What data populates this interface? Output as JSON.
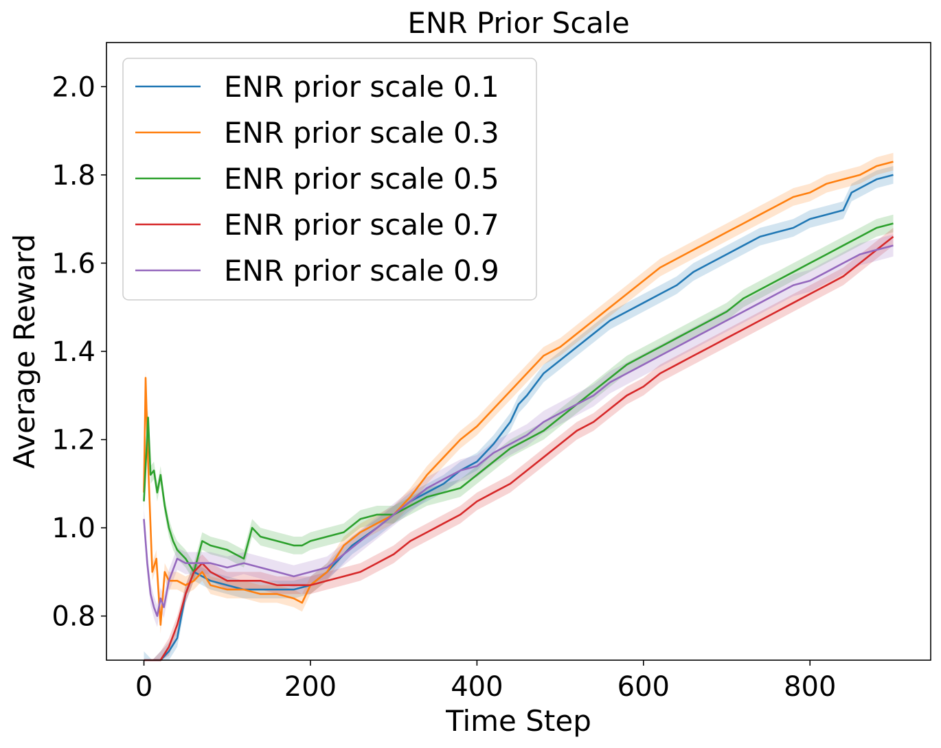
{
  "chart_data": {
    "type": "line",
    "title": "ENR Prior Scale",
    "xlabel": "Time Step",
    "ylabel": "Average Reward",
    "xlim": [
      -45,
      945
    ],
    "ylim": [
      0.7,
      2.1
    ],
    "xticks": [
      0,
      200,
      400,
      600,
      800
    ],
    "xtick_labels": [
      "0",
      "200",
      "400",
      "600",
      "800"
    ],
    "yticks": [
      0.8,
      1.0,
      1.2,
      1.4,
      1.6,
      1.8,
      2.0
    ],
    "ytick_labels": [
      "0.8",
      "1.0",
      "1.2",
      "1.4",
      "1.6",
      "1.8",
      "2.0"
    ],
    "grid": false,
    "legend_position": "top-left",
    "bands": true,
    "series": [
      {
        "name": "ENR prior scale 0.1",
        "color": "#1f77b4",
        "x": [
          0,
          10,
          20,
          30,
          40,
          50,
          60,
          80,
          100,
          120,
          150,
          180,
          200,
          220,
          250,
          280,
          300,
          320,
          340,
          360,
          380,
          400,
          420,
          440,
          450,
          460,
          480,
          500,
          520,
          540,
          560,
          580,
          600,
          620,
          640,
          660,
          680,
          700,
          720,
          740,
          760,
          780,
          800,
          820,
          840,
          850,
          860,
          880,
          900
        ],
        "y": [
          0.7,
          0.68,
          0.7,
          0.72,
          0.75,
          0.85,
          0.9,
          0.88,
          0.87,
          0.86,
          0.86,
          0.86,
          0.87,
          0.9,
          0.96,
          1.0,
          1.03,
          1.06,
          1.08,
          1.1,
          1.13,
          1.15,
          1.19,
          1.24,
          1.28,
          1.3,
          1.35,
          1.38,
          1.41,
          1.44,
          1.47,
          1.49,
          1.51,
          1.53,
          1.55,
          1.58,
          1.6,
          1.62,
          1.64,
          1.66,
          1.67,
          1.68,
          1.7,
          1.71,
          1.72,
          1.76,
          1.77,
          1.79,
          1.8
        ],
        "band": 0.02
      },
      {
        "name": "ENR prior scale 0.3",
        "color": "#ff7f0e",
        "x": [
          0,
          2,
          5,
          10,
          15,
          20,
          25,
          30,
          40,
          50,
          60,
          70,
          80,
          100,
          120,
          140,
          160,
          180,
          190,
          200,
          220,
          240,
          260,
          280,
          300,
          320,
          340,
          360,
          380,
          400,
          420,
          440,
          460,
          480,
          500,
          520,
          540,
          560,
          580,
          600,
          620,
          640,
          660,
          680,
          700,
          720,
          740,
          760,
          780,
          800,
          820,
          840,
          860,
          880,
          900
        ],
        "y": [
          1.08,
          1.34,
          1.15,
          0.9,
          0.93,
          0.78,
          0.9,
          0.88,
          0.88,
          0.87,
          0.88,
          0.9,
          0.87,
          0.86,
          0.86,
          0.85,
          0.85,
          0.84,
          0.83,
          0.87,
          0.9,
          0.96,
          0.99,
          1.01,
          1.03,
          1.07,
          1.12,
          1.16,
          1.2,
          1.23,
          1.27,
          1.31,
          1.35,
          1.39,
          1.41,
          1.44,
          1.47,
          1.5,
          1.53,
          1.56,
          1.59,
          1.61,
          1.63,
          1.65,
          1.67,
          1.69,
          1.71,
          1.73,
          1.75,
          1.76,
          1.78,
          1.79,
          1.8,
          1.82,
          1.83
        ],
        "band": 0.02
      },
      {
        "name": "ENR prior scale 0.5",
        "color": "#2ca02c",
        "x": [
          0,
          5,
          8,
          12,
          16,
          20,
          25,
          30,
          35,
          40,
          50,
          60,
          70,
          80,
          100,
          120,
          130,
          140,
          160,
          180,
          190,
          200,
          220,
          240,
          260,
          280,
          300,
          320,
          340,
          360,
          380,
          400,
          420,
          440,
          460,
          480,
          500,
          520,
          540,
          560,
          580,
          600,
          620,
          640,
          660,
          680,
          700,
          720,
          740,
          760,
          780,
          800,
          820,
          840,
          860,
          880,
          900
        ],
        "y": [
          1.06,
          1.25,
          1.12,
          1.13,
          1.08,
          1.12,
          1.05,
          1.0,
          0.97,
          0.95,
          0.93,
          0.9,
          0.97,
          0.96,
          0.95,
          0.93,
          1.0,
          0.98,
          0.97,
          0.96,
          0.96,
          0.97,
          0.98,
          0.99,
          1.02,
          1.03,
          1.03,
          1.05,
          1.07,
          1.08,
          1.09,
          1.12,
          1.15,
          1.18,
          1.2,
          1.22,
          1.25,
          1.28,
          1.31,
          1.34,
          1.37,
          1.39,
          1.41,
          1.43,
          1.45,
          1.47,
          1.49,
          1.52,
          1.54,
          1.56,
          1.58,
          1.6,
          1.62,
          1.64,
          1.66,
          1.68,
          1.69
        ],
        "band": 0.02
      },
      {
        "name": "ENR prior scale 0.7",
        "color": "#d62728",
        "x": [
          0,
          10,
          20,
          30,
          40,
          50,
          60,
          70,
          80,
          100,
          120,
          140,
          160,
          180,
          200,
          220,
          240,
          260,
          280,
          300,
          320,
          340,
          360,
          380,
          400,
          420,
          440,
          460,
          480,
          500,
          520,
          540,
          560,
          580,
          600,
          620,
          640,
          660,
          680,
          700,
          720,
          740,
          760,
          780,
          800,
          820,
          840,
          860,
          880,
          900
        ],
        "y": [
          0.68,
          0.68,
          0.7,
          0.73,
          0.78,
          0.85,
          0.9,
          0.92,
          0.9,
          0.88,
          0.88,
          0.88,
          0.87,
          0.87,
          0.87,
          0.88,
          0.89,
          0.9,
          0.92,
          0.94,
          0.97,
          0.99,
          1.01,
          1.03,
          1.06,
          1.08,
          1.1,
          1.13,
          1.16,
          1.19,
          1.22,
          1.24,
          1.27,
          1.3,
          1.32,
          1.35,
          1.37,
          1.39,
          1.41,
          1.43,
          1.45,
          1.47,
          1.49,
          1.51,
          1.53,
          1.55,
          1.57,
          1.6,
          1.63,
          1.66
        ],
        "band": 0.02
      },
      {
        "name": "ENR prior scale 0.9",
        "color": "#9467bd",
        "x": [
          0,
          4,
          8,
          12,
          16,
          20,
          24,
          30,
          40,
          50,
          60,
          80,
          100,
          120,
          140,
          160,
          180,
          200,
          220,
          240,
          260,
          280,
          300,
          320,
          340,
          360,
          380,
          400,
          420,
          440,
          460,
          480,
          500,
          520,
          540,
          560,
          580,
          600,
          620,
          640,
          660,
          680,
          700,
          720,
          740,
          760,
          780,
          800,
          820,
          840,
          860,
          880,
          900
        ],
        "y": [
          1.02,
          0.92,
          0.85,
          0.82,
          0.8,
          0.84,
          0.82,
          0.88,
          0.93,
          0.92,
          0.92,
          0.92,
          0.91,
          0.92,
          0.91,
          0.9,
          0.89,
          0.9,
          0.91,
          0.94,
          0.97,
          1.0,
          1.03,
          1.06,
          1.09,
          1.11,
          1.13,
          1.14,
          1.17,
          1.19,
          1.21,
          1.24,
          1.26,
          1.28,
          1.3,
          1.33,
          1.35,
          1.37,
          1.39,
          1.41,
          1.43,
          1.45,
          1.47,
          1.49,
          1.51,
          1.53,
          1.55,
          1.56,
          1.58,
          1.6,
          1.62,
          1.63,
          1.64
        ],
        "band": 0.025
      }
    ]
  }
}
